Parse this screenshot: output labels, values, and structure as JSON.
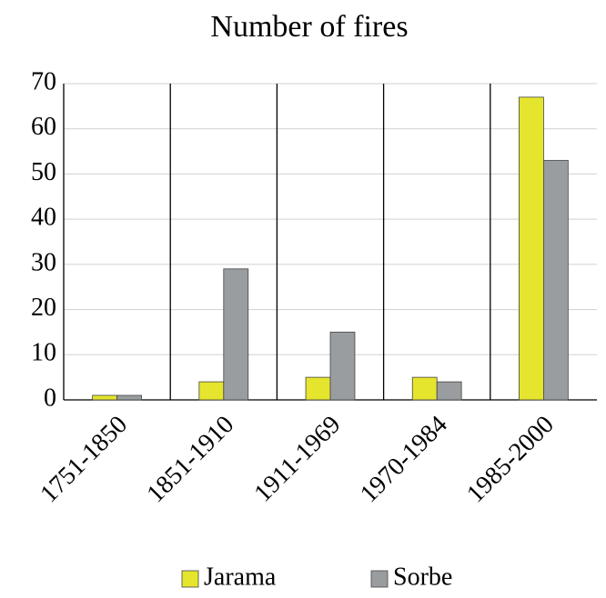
{
  "chart_data": {
    "type": "bar",
    "title": "Number of fires",
    "categories": [
      "1751-1850",
      "1851-1910",
      "1911-1969",
      "1970-1984",
      "1985-2000"
    ],
    "series": [
      {
        "name": "Jarama",
        "color": "#e5e52e",
        "values": [
          1,
          4,
          5,
          5,
          67
        ]
      },
      {
        "name": "Sorbe",
        "color": "#9a9d9f",
        "values": [
          1,
          29,
          15,
          4,
          53
        ]
      }
    ],
    "ylim": [
      0,
      70
    ],
    "yticks": [
      0,
      10,
      20,
      30,
      40,
      50,
      60,
      70
    ],
    "grid": true,
    "legend": "bottom"
  }
}
